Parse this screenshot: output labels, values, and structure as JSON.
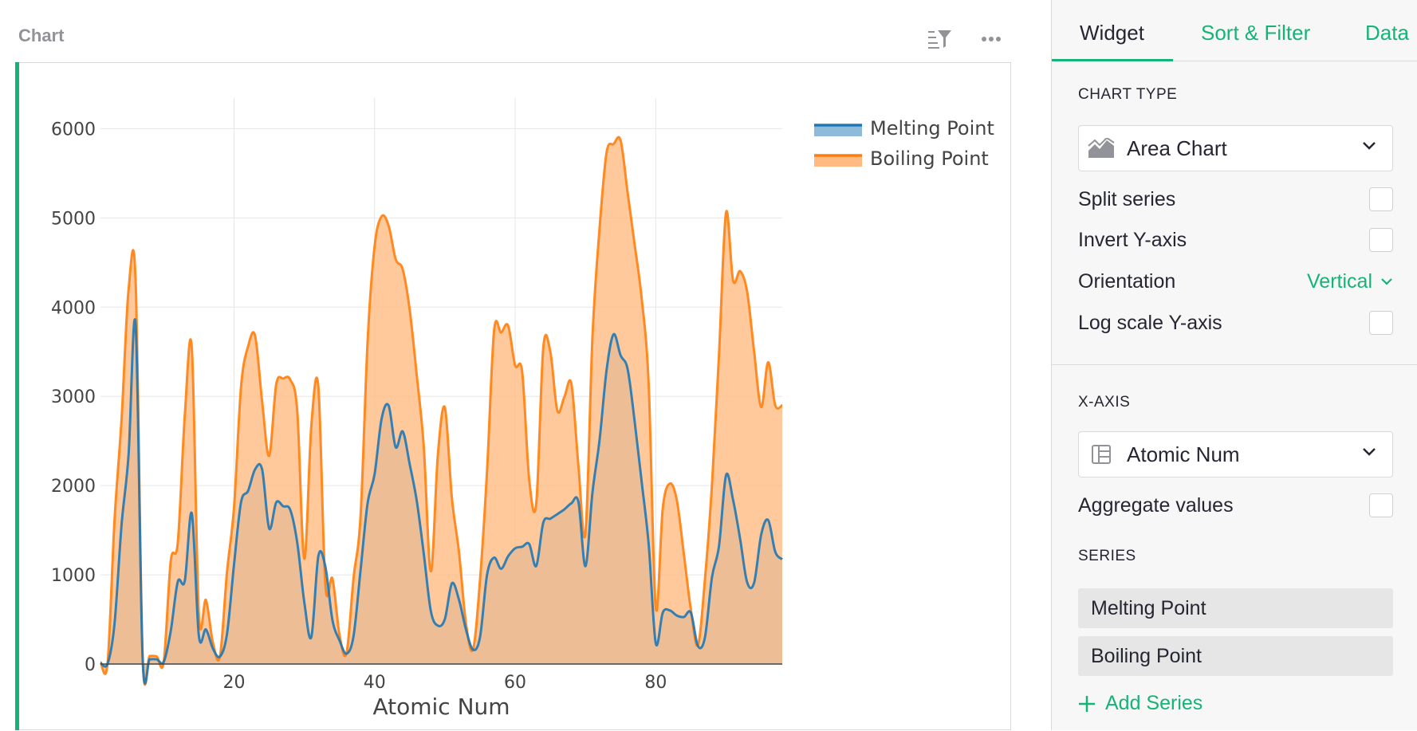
{
  "widget": {
    "title": "Chart",
    "icons": [
      "sort-filter-icon",
      "more-options-icon"
    ]
  },
  "panel": {
    "tabs": [
      {
        "label": "Widget",
        "active": true
      },
      {
        "label": "Sort & Filter",
        "active": false
      },
      {
        "label": "Data",
        "active": false
      }
    ],
    "chart_type_heading": "CHART TYPE",
    "chart_type": {
      "label": "Area Chart",
      "icon": "area-chart-icon"
    },
    "options": [
      {
        "label": "Split series",
        "checked": false
      },
      {
        "label": "Invert Y-axis",
        "checked": false
      }
    ],
    "orientation": {
      "label": "Orientation",
      "value": "Vertical"
    },
    "log_scale": {
      "label": "Log scale Y-axis",
      "checked": false
    },
    "x_axis_heading": "X-AXIS",
    "x_axis": {
      "label": "Atomic Num",
      "icon": "table-column-icon"
    },
    "aggregate": {
      "label": "Aggregate values",
      "checked": false
    },
    "series_heading": "SERIES",
    "series": [
      "Melting Point",
      "Boiling Point"
    ],
    "add_series_label": "Add Series"
  },
  "colors": {
    "accent": "#16b378",
    "melting_line": "#1f77b4",
    "melting_fill": "#8fbad9",
    "boiling_line": "#ff7f0e",
    "boiling_fill": "#ffbb83"
  },
  "chart_data": {
    "type": "area",
    "title": "",
    "xlabel": "Atomic Num",
    "ylabel": "",
    "xlim": [
      1,
      98
    ],
    "ylim": [
      0,
      6200
    ],
    "xticks": [
      20,
      40,
      60,
      80
    ],
    "yticks": [
      0,
      1000,
      2000,
      3000,
      4000,
      5000,
      6000
    ],
    "grid": true,
    "legend_position": "top-right",
    "x": [
      1,
      2,
      3,
      4,
      5,
      6,
      7,
      8,
      9,
      10,
      11,
      12,
      13,
      14,
      15,
      16,
      17,
      18,
      19,
      20,
      21,
      22,
      23,
      24,
      25,
      26,
      27,
      28,
      29,
      30,
      31,
      32,
      33,
      34,
      35,
      36,
      37,
      38,
      39,
      40,
      41,
      42,
      43,
      44,
      45,
      46,
      47,
      48,
      49,
      50,
      51,
      52,
      53,
      54,
      55,
      56,
      57,
      58,
      59,
      60,
      61,
      62,
      63,
      64,
      65,
      66,
      67,
      68,
      69,
      70,
      71,
      72,
      73,
      74,
      75,
      76,
      77,
      78,
      79,
      80,
      81,
      82,
      83,
      84,
      85,
      86,
      87,
      88,
      89,
      90,
      91,
      92,
      93,
      94,
      95,
      96,
      97,
      98
    ],
    "series": [
      {
        "name": "Melting Point",
        "values": [
          14,
          1,
          454,
          1560,
          2349,
          3800,
          63,
          54,
          53,
          25,
          371,
          923,
          934,
          1687,
          317,
          388,
          172,
          84,
          337,
          1115,
          1814,
          1941,
          2183,
          2180,
          1519,
          1811,
          1768,
          1728,
          1358,
          693,
          303,
          1211,
          1090,
          494,
          266,
          116,
          312,
          1050,
          1799,
          2128,
          2750,
          2896,
          2430,
          2607,
          2237,
          1828,
          1235,
          594,
          430,
          505,
          904,
          723,
          387,
          161,
          302,
          1000,
          1193,
          1068,
          1208,
          1297,
          1315,
          1345,
          1099,
          1585,
          1629,
          1680,
          1734,
          1802,
          1818,
          1097,
          1925,
          2506,
          3290,
          3695,
          3459,
          3306,
          2719,
          2041,
          1337,
          234,
          577,
          601,
          544,
          527,
          575,
          202,
          300,
          973,
          1323,
          2115,
          1841,
          1405,
          917,
          913,
          1449,
          1613,
          1259,
          1173
        ]
      },
      {
        "name": "Boiling Point",
        "values": [
          20,
          4,
          1615,
          2744,
          4200,
          4300,
          77,
          90,
          85,
          27,
          1156,
          1363,
          2792,
          3538,
          554,
          718,
          239,
          87,
          1032,
          1757,
          3109,
          3560,
          3680,
          2944,
          2334,
          3134,
          3200,
          3186,
          2835,
          1180,
          2673,
          3106,
          887,
          958,
          332,
          120,
          961,
          1655,
          3609,
          4682,
          5017,
          4912,
          4538,
          4423,
          3968,
          3236,
          2435,
          1040,
          2345,
          2875,
          1860,
          1261,
          457,
          165,
          944,
          2170,
          3737,
          3716,
          3793,
          3347,
          3273,
          2067,
          1802,
          3546,
          3503,
          2840,
          2993,
          3141,
          2223,
          1469,
          3675,
          4876,
          5731,
          5828,
          5869,
          5285,
          4701,
          4098,
          3129,
          630,
          1746,
          2022,
          1837,
          1235,
          610,
          211,
          950,
          2010,
          3471,
          5061,
          4300,
          4404,
          4175,
          3501,
          2880,
          3383,
          2900,
          2900
        ]
      }
    ]
  }
}
